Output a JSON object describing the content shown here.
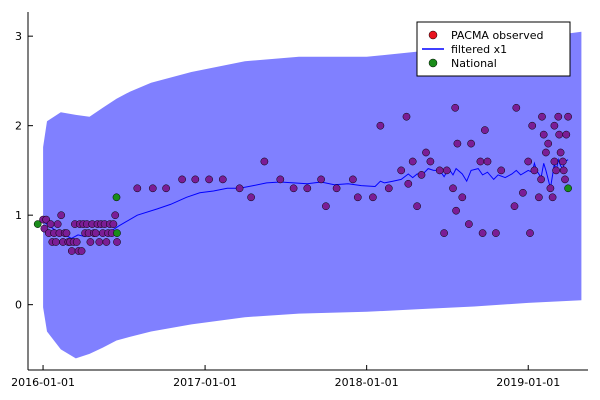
{
  "chart_data": {
    "type": "scatter",
    "xlabel": "",
    "ylabel": "",
    "x_tick_labels": [
      "2016-01-01",
      "2017-01-01",
      "2018-01-01",
      "2019-01-01"
    ],
    "x_tick_dates": [
      "2016-01-01",
      "2017-01-01",
      "2018-01-01",
      "2019-01-01"
    ],
    "y_ticks": [
      0,
      1,
      2,
      3
    ],
    "x_range": [
      "2015-11-28",
      "2019-05-16"
    ],
    "y_range": [
      -0.73,
      3.27
    ],
    "grid": false,
    "legend_position": "top-right",
    "legend": [
      {
        "label": "PACMA observed",
        "kind": "marker",
        "color": "#e8141f"
      },
      {
        "label": "filtered x1",
        "kind": "line",
        "color": "#0000ff"
      },
      {
        "label": "National",
        "kind": "marker",
        "color": "#1a8c1a"
      }
    ],
    "band": {
      "color": "#8080ff",
      "points": [
        [
          "2016-01-01",
          -0.03,
          1.76
        ],
        [
          "2016-01-10",
          -0.3,
          2.05
        ],
        [
          "2016-02-10",
          -0.5,
          2.15
        ],
        [
          "2016-03-15",
          -0.6,
          2.12
        ],
        [
          "2016-04-15",
          -0.55,
          2.1
        ],
        [
          "2016-05-15",
          -0.48,
          2.2
        ],
        [
          "2016-06-15",
          -0.4,
          2.3
        ],
        [
          "2016-07-15",
          -0.36,
          2.38
        ],
        [
          "2016-09-01",
          -0.3,
          2.48
        ],
        [
          "2016-12-01",
          -0.22,
          2.6
        ],
        [
          "2017-04-01",
          -0.14,
          2.72
        ],
        [
          "2017-08-01",
          -0.1,
          2.77
        ],
        [
          "2018-01-01",
          -0.08,
          2.77
        ],
        [
          "2018-05-01",
          -0.05,
          2.83
        ],
        [
          "2018-09-01",
          -0.02,
          2.93
        ],
        [
          "2019-01-01",
          0.02,
          2.97
        ],
        [
          "2019-05-01",
          0.05,
          3.05
        ]
      ]
    },
    "series": [
      {
        "name": "PACMA observed",
        "type": "scatter",
        "color": "#7b1d95",
        "points": [
          [
            "2016-01-01",
            0.95
          ],
          [
            "2016-01-04",
            0.85
          ],
          [
            "2016-01-08",
            0.95
          ],
          [
            "2016-01-14",
            0.8
          ],
          [
            "2016-01-18",
            0.9
          ],
          [
            "2016-01-22",
            0.7
          ],
          [
            "2016-01-26",
            0.8
          ],
          [
            "2016-01-30",
            0.7
          ],
          [
            "2016-02-03",
            0.9
          ],
          [
            "2016-02-07",
            0.8
          ],
          [
            "2016-02-11",
            1.0
          ],
          [
            "2016-02-15",
            0.7
          ],
          [
            "2016-02-19",
            0.8
          ],
          [
            "2016-02-23",
            0.8
          ],
          [
            "2016-02-27",
            0.7
          ],
          [
            "2016-03-02",
            0.7
          ],
          [
            "2016-03-06",
            0.6
          ],
          [
            "2016-03-10",
            0.7
          ],
          [
            "2016-03-13",
            0.9
          ],
          [
            "2016-03-17",
            0.7
          ],
          [
            "2016-03-21",
            0.6
          ],
          [
            "2016-03-24",
            0.9
          ],
          [
            "2016-03-28",
            0.6
          ],
          [
            "2016-04-01",
            0.9
          ],
          [
            "2016-04-05",
            0.8
          ],
          [
            "2016-04-09",
            0.9
          ],
          [
            "2016-04-13",
            0.8
          ],
          [
            "2016-04-17",
            0.7
          ],
          [
            "2016-04-21",
            0.9
          ],
          [
            "2016-04-25",
            0.8
          ],
          [
            "2016-04-29",
            0.8
          ],
          [
            "2016-05-03",
            0.9
          ],
          [
            "2016-05-07",
            0.7
          ],
          [
            "2016-05-11",
            0.9
          ],
          [
            "2016-05-15",
            0.8
          ],
          [
            "2016-05-19",
            0.9
          ],
          [
            "2016-05-23",
            0.7
          ],
          [
            "2016-05-27",
            0.8
          ],
          [
            "2016-05-31",
            0.9
          ],
          [
            "2016-06-04",
            0.8
          ],
          [
            "2016-06-08",
            0.9
          ],
          [
            "2016-06-12",
            1.0
          ],
          [
            "2016-06-16",
            0.7
          ],
          [
            "2016-08-01",
            1.3
          ],
          [
            "2016-09-05",
            1.3
          ],
          [
            "2016-10-05",
            1.3
          ],
          [
            "2016-11-10",
            1.4
          ],
          [
            "2016-12-10",
            1.4
          ],
          [
            "2017-01-10",
            1.4
          ],
          [
            "2017-02-10",
            1.4
          ],
          [
            "2017-03-20",
            1.3
          ],
          [
            "2017-04-15",
            1.2
          ],
          [
            "2017-05-15",
            1.6
          ],
          [
            "2017-06-20",
            1.4
          ],
          [
            "2017-07-20",
            1.3
          ],
          [
            "2017-08-20",
            1.3
          ],
          [
            "2017-09-20",
            1.4
          ],
          [
            "2017-10-01",
            1.1
          ],
          [
            "2017-10-25",
            1.3
          ],
          [
            "2017-12-01",
            1.4
          ],
          [
            "2017-12-12",
            1.2
          ],
          [
            "2018-01-15",
            1.2
          ],
          [
            "2018-02-01",
            2.0
          ],
          [
            "2018-02-20",
            1.3
          ],
          [
            "2018-03-20",
            1.5
          ],
          [
            "2018-04-01",
            2.1
          ],
          [
            "2018-04-05",
            1.35
          ],
          [
            "2018-04-15",
            1.6
          ],
          [
            "2018-04-25",
            1.1
          ],
          [
            "2018-05-05",
            1.45
          ],
          [
            "2018-05-15",
            1.7
          ],
          [
            "2018-05-25",
            1.6
          ],
          [
            "2018-06-15",
            1.5
          ],
          [
            "2018-06-25",
            0.8
          ],
          [
            "2018-07-01",
            1.5
          ],
          [
            "2018-07-15",
            1.3
          ],
          [
            "2018-07-20",
            2.2
          ],
          [
            "2018-07-22",
            1.05
          ],
          [
            "2018-07-25",
            1.8
          ],
          [
            "2018-08-05",
            1.2
          ],
          [
            "2018-08-20",
            0.9
          ],
          [
            "2018-08-25",
            1.8
          ],
          [
            "2018-09-15",
            1.6
          ],
          [
            "2018-09-20",
            0.8
          ],
          [
            "2018-09-25",
            1.95
          ],
          [
            "2018-10-01",
            1.6
          ],
          [
            "2018-10-20",
            0.8
          ],
          [
            "2018-11-01",
            1.5
          ],
          [
            "2018-12-01",
            1.1
          ],
          [
            "2018-12-05",
            2.2
          ],
          [
            "2018-12-20",
            1.25
          ],
          [
            "2019-01-01",
            1.6
          ],
          [
            "2019-01-05",
            0.8
          ],
          [
            "2019-01-10",
            2.0
          ],
          [
            "2019-01-15",
            1.5
          ],
          [
            "2019-01-25",
            1.2
          ],
          [
            "2019-01-30",
            1.4
          ],
          [
            "2019-02-01",
            2.1
          ],
          [
            "2019-02-05",
            1.9
          ],
          [
            "2019-02-10",
            1.7
          ],
          [
            "2019-02-15",
            1.8
          ],
          [
            "2019-02-20",
            1.3
          ],
          [
            "2019-02-25",
            1.2
          ],
          [
            "2019-03-01",
            1.6
          ],
          [
            "2019-03-01",
            2.0
          ],
          [
            "2019-03-05",
            1.5
          ],
          [
            "2019-03-10",
            2.1
          ],
          [
            "2019-03-12",
            1.9
          ],
          [
            "2019-03-15",
            1.7
          ],
          [
            "2019-03-20",
            1.6
          ],
          [
            "2019-03-22",
            1.5
          ],
          [
            "2019-03-25",
            1.4
          ],
          [
            "2019-03-28",
            1.9
          ],
          [
            "2019-04-01",
            2.1
          ]
        ]
      },
      {
        "name": "filtered x1",
        "type": "line",
        "color": "#0000ff",
        "points": [
          [
            "2016-01-01",
            0.93
          ],
          [
            "2016-01-15",
            0.88
          ],
          [
            "2016-02-01",
            0.82
          ],
          [
            "2016-02-20",
            0.78
          ],
          [
            "2016-03-05",
            0.74
          ],
          [
            "2016-03-20",
            0.78
          ],
          [
            "2016-04-05",
            0.76
          ],
          [
            "2016-04-20",
            0.8
          ],
          [
            "2016-05-05",
            0.78
          ],
          [
            "2016-05-20",
            0.81
          ],
          [
            "2016-06-05",
            0.83
          ],
          [
            "2016-06-20",
            0.88
          ],
          [
            "2016-08-01",
            1.0
          ],
          [
            "2016-09-15",
            1.07
          ],
          [
            "2016-10-15",
            1.12
          ],
          [
            "2016-11-20",
            1.2
          ],
          [
            "2016-12-20",
            1.25
          ],
          [
            "2017-01-20",
            1.27
          ],
          [
            "2017-02-20",
            1.3
          ],
          [
            "2017-03-20",
            1.3
          ],
          [
            "2017-04-20",
            1.33
          ],
          [
            "2017-05-20",
            1.36
          ],
          [
            "2017-06-20",
            1.37
          ],
          [
            "2017-07-20",
            1.36
          ],
          [
            "2017-08-20",
            1.35
          ],
          [
            "2017-09-20",
            1.37
          ],
          [
            "2017-10-20",
            1.34
          ],
          [
            "2017-11-20",
            1.35
          ],
          [
            "2017-12-20",
            1.33
          ],
          [
            "2018-01-20",
            1.32
          ],
          [
            "2018-02-01",
            1.38
          ],
          [
            "2018-02-10",
            1.36
          ],
          [
            "2018-03-01",
            1.38
          ],
          [
            "2018-03-20",
            1.4
          ],
          [
            "2018-04-05",
            1.46
          ],
          [
            "2018-04-15",
            1.42
          ],
          [
            "2018-04-25",
            1.46
          ],
          [
            "2018-05-10",
            1.47
          ],
          [
            "2018-05-20",
            1.52
          ],
          [
            "2018-06-01",
            1.5
          ],
          [
            "2018-06-15",
            1.5
          ],
          [
            "2018-06-25",
            1.43
          ],
          [
            "2018-07-05",
            1.52
          ],
          [
            "2018-07-15",
            1.45
          ],
          [
            "2018-07-22",
            1.52
          ],
          [
            "2018-08-05",
            1.46
          ],
          [
            "2018-08-15",
            1.38
          ],
          [
            "2018-08-25",
            1.5
          ],
          [
            "2018-09-10",
            1.52
          ],
          [
            "2018-09-20",
            1.45
          ],
          [
            "2018-10-01",
            1.48
          ],
          [
            "2018-10-15",
            1.4
          ],
          [
            "2018-10-25",
            1.45
          ],
          [
            "2018-11-10",
            1.42
          ],
          [
            "2018-11-25",
            1.46
          ],
          [
            "2018-12-05",
            1.5
          ],
          [
            "2018-12-15",
            1.45
          ],
          [
            "2019-01-01",
            1.5
          ],
          [
            "2019-01-10",
            1.48
          ],
          [
            "2019-01-15",
            1.58
          ],
          [
            "2019-01-20",
            1.5
          ],
          [
            "2019-01-30",
            1.42
          ],
          [
            "2019-02-05",
            1.58
          ],
          [
            "2019-02-10",
            1.5
          ],
          [
            "2019-02-15",
            1.4
          ],
          [
            "2019-02-20",
            1.3
          ],
          [
            "2019-02-25",
            1.45
          ],
          [
            "2019-03-01",
            1.58
          ],
          [
            "2019-03-05",
            1.48
          ],
          [
            "2019-03-10",
            1.62
          ],
          [
            "2019-03-15",
            1.55
          ],
          [
            "2019-03-20",
            1.52
          ],
          [
            "2019-03-25",
            1.6
          ],
          [
            "2019-04-01",
            1.62
          ]
        ]
      },
      {
        "name": "National",
        "type": "scatter",
        "color": "#1a8c1a",
        "points": [
          [
            "2015-12-20",
            0.9
          ],
          [
            "2016-06-15",
            1.2
          ],
          [
            "2016-06-16",
            0.8
          ],
          [
            "2019-04-01",
            1.3
          ]
        ]
      }
    ]
  }
}
